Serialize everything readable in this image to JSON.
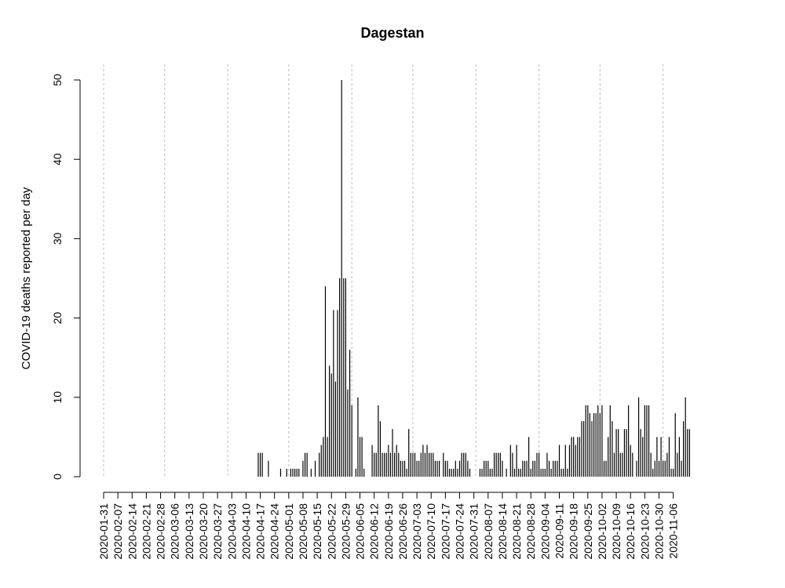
{
  "chart_data": {
    "type": "bar",
    "title": "Dagestan",
    "xlabel": "",
    "ylabel": "COVID-19 deaths reported per day",
    "ylim": [
      0,
      50
    ],
    "yticks": [
      0,
      10,
      20,
      30,
      40,
      50
    ],
    "x_start": "2020-01-31",
    "x_end": "2020-11-10",
    "xticks": [
      "2020-01-31",
      "2020-02-07",
      "2020-02-14",
      "2020-02-21",
      "2020-02-28",
      "2020-03-06",
      "2020-03-13",
      "2020-03-20",
      "2020-03-27",
      "2020-04-03",
      "2020-04-10",
      "2020-04-17",
      "2020-04-24",
      "2020-05-01",
      "2020-05-08",
      "2020-05-15",
      "2020-05-22",
      "2020-05-29",
      "2020-06-05",
      "2020-06-12",
      "2020-06-19",
      "2020-06-26",
      "2020-07-03",
      "2020-07-10",
      "2020-07-17",
      "2020-07-24",
      "2020-07-31",
      "2020-08-07",
      "2020-08-14",
      "2020-08-21",
      "2020-08-28",
      "2020-09-04",
      "2020-09-11",
      "2020-09-18",
      "2020-09-25",
      "2020-10-02",
      "2020-10-09",
      "2020-10-16",
      "2020-10-23",
      "2020-10-30",
      "2020-11-06"
    ],
    "grid_dates": [
      "2020-01-31",
      "2020-03-01",
      "2020-04-01",
      "2020-05-01",
      "2020-06-01",
      "2020-07-01",
      "2020-08-01",
      "2020-09-01",
      "2020-10-01",
      "2020-11-01"
    ],
    "values": [
      0,
      0,
      0,
      0,
      0,
      0,
      0,
      0,
      0,
      0,
      0,
      0,
      0,
      0,
      0,
      0,
      0,
      0,
      0,
      0,
      0,
      0,
      0,
      0,
      0,
      0,
      0,
      0,
      0,
      0,
      0,
      0,
      0,
      0,
      0,
      0,
      0,
      0,
      0,
      0,
      0,
      0,
      0,
      0,
      0,
      0,
      0,
      0,
      0,
      0,
      0,
      0,
      0,
      0,
      0,
      0,
      0,
      0,
      0,
      0,
      0,
      0,
      0,
      0,
      0,
      0,
      0,
      0,
      0,
      0,
      0,
      0,
      0,
      0,
      0,
      0,
      3,
      3,
      3,
      0,
      0,
      2,
      0,
      0,
      0,
      0,
      0,
      1,
      0,
      0,
      1,
      0,
      1,
      1,
      1,
      1,
      1,
      0,
      2,
      3,
      3,
      0,
      1,
      0,
      2,
      0,
      3,
      4,
      5,
      24,
      5,
      14,
      13,
      21,
      12,
      21,
      25,
      50,
      25,
      25,
      11,
      16,
      9,
      0,
      1,
      10,
      5,
      5,
      1,
      0,
      0,
      0,
      4,
      3,
      3,
      9,
      7,
      3,
      3,
      3,
      4,
      3,
      6,
      3,
      4,
      3,
      2,
      2,
      2,
      1,
      6,
      3,
      3,
      3,
      2,
      2,
      3,
      4,
      3,
      4,
      3,
      3,
      3,
      2,
      2,
      2,
      0,
      3,
      2,
      2,
      1,
      1,
      1,
      2,
      1,
      2,
      3,
      3,
      3,
      2,
      1,
      0,
      0,
      0,
      0,
      1,
      1,
      2,
      2,
      2,
      1,
      1,
      3,
      3,
      3,
      3,
      2,
      0,
      1,
      0,
      4,
      3,
      1,
      4,
      1,
      1,
      2,
      2,
      2,
      5,
      1,
      2,
      2,
      3,
      3,
      1,
      1,
      1,
      3,
      2,
      1,
      2,
      2,
      2,
      4,
      1,
      1,
      4,
      1,
      4,
      5,
      5,
      4,
      5,
      5,
      7,
      7,
      9,
      9,
      8,
      7,
      8,
      8,
      9,
      8,
      9,
      2,
      2,
      5,
      9,
      7,
      3,
      6,
      6,
      3,
      3,
      6,
      6,
      9,
      4,
      3,
      0,
      2,
      10,
      6,
      5,
      9,
      9,
      9,
      3,
      1,
      2,
      5,
      2,
      5,
      2,
      2,
      3,
      5,
      1,
      1,
      8,
      3,
      5,
      2,
      7,
      10,
      6,
      6
    ]
  }
}
